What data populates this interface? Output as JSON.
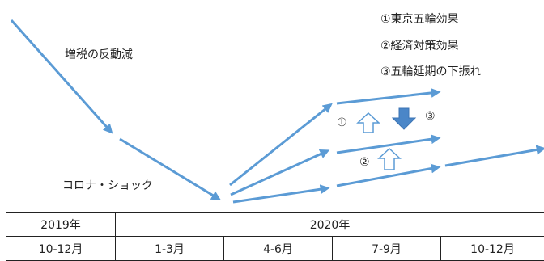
{
  "labels": {
    "tax_drop": "増税の反動減",
    "corona": "コロナ・ショック"
  },
  "legend": {
    "item1": "①東京五輪効果",
    "item2": "②経済対策効果",
    "item3": "③五輪延期の下振れ"
  },
  "markers": {
    "m1": "①",
    "m2": "②",
    "m3": "③"
  },
  "colors": {
    "arrow_blue": "#5b9bd5",
    "block_arrow_fill": "#4a86c8",
    "outline_arrow_stroke": "#5b9bd5"
  },
  "timeline": {
    "years": [
      "2019年",
      "2020年"
    ],
    "quarters": [
      "10-12月",
      "1-3月",
      "4-6月",
      "7-9月",
      "10-12月"
    ]
  }
}
